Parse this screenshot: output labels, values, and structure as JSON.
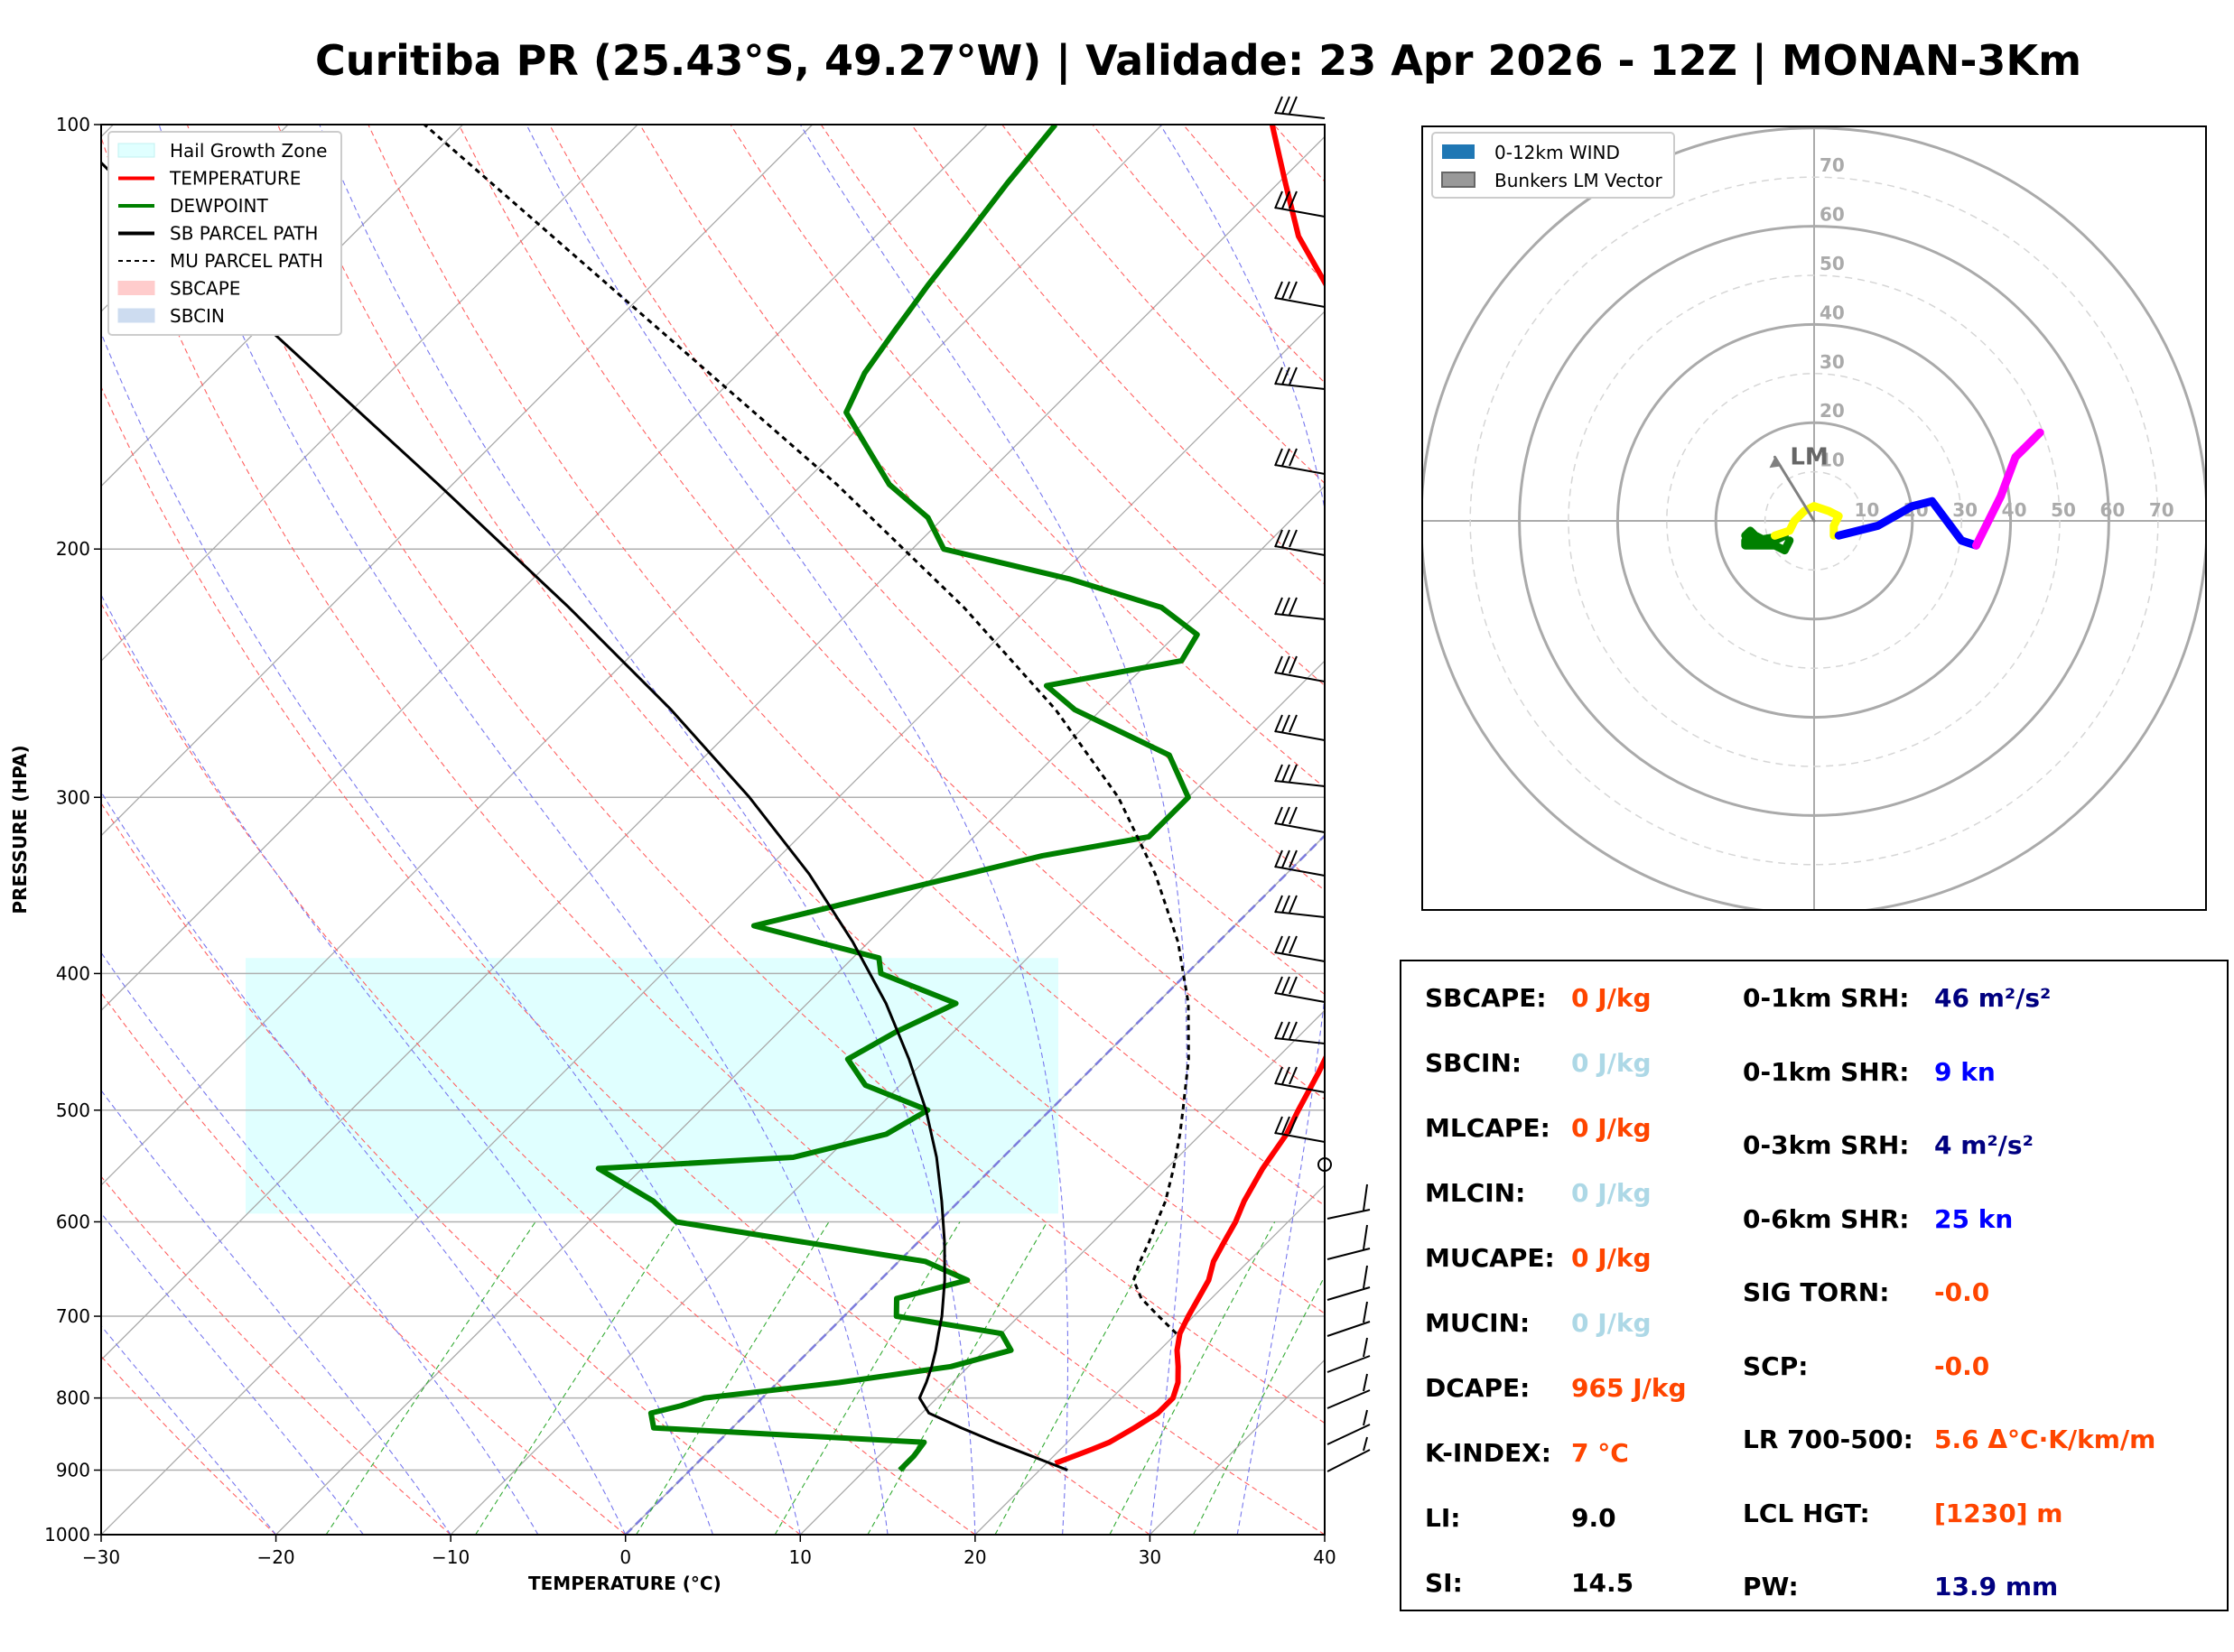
{
  "title": "Curitiba PR (25.43°S, 49.27°W) | Validade: 23 Apr 2026 - 12Z | MONAN-3Km",
  "skewt": {
    "xlabel": "TEMPERATURE (°C)",
    "ylabel": "PRESSURE (HPA)",
    "x_ticks": [
      "−30",
      "−20",
      "−10",
      "0",
      "10",
      "20",
      "30",
      "40"
    ],
    "y_ticks": [
      "100",
      "200",
      "300",
      "400",
      "500",
      "600",
      "700",
      "800",
      "900",
      "1000"
    ],
    "legend": [
      {
        "label": "Hail Growth Zone",
        "color": "#e0ffff",
        "kind": "patch"
      },
      {
        "label": "TEMPERATURE",
        "color": "#ff0000",
        "kind": "line"
      },
      {
        "label": "DEWPOINT",
        "color": "#008000",
        "kind": "line"
      },
      {
        "label": "SB PARCEL PATH",
        "color": "#000000",
        "kind": "line"
      },
      {
        "label": "MU PARCEL PATH",
        "color": "#000000",
        "kind": "dashed"
      },
      {
        "label": "SBCAPE",
        "color": "#ffcccc",
        "kind": "patch"
      },
      {
        "label": "SBCIN",
        "color": "#cddcf0",
        "kind": "patch"
      }
    ]
  },
  "hodograph": {
    "legend": [
      {
        "label": "0-12km WIND",
        "color": "#1f77b4"
      },
      {
        "label": "Bunkers LM Vector",
        "color": "#999999"
      }
    ],
    "ring_labels": [
      "10",
      "20",
      "30",
      "40",
      "50",
      "60",
      "70"
    ],
    "lm_label": "LM"
  },
  "params": {
    "left": [
      {
        "label": "SBCAPE:",
        "value": "0 J/kg",
        "color": "#ff4500"
      },
      {
        "label": "SBCIN:",
        "value": "0 J/kg",
        "color": "#add8e6"
      },
      {
        "label": "MLCAPE:",
        "value": "0 J/kg",
        "color": "#ff4500"
      },
      {
        "label": "MLCIN:",
        "value": "0 J/kg",
        "color": "#add8e6"
      },
      {
        "label": "MUCAPE:",
        "value": "0 J/kg",
        "color": "#ff4500"
      },
      {
        "label": "MUCIN:",
        "value": "0 J/kg",
        "color": "#add8e6"
      },
      {
        "label": "DCAPE:",
        "value": "965 J/kg",
        "color": "#ff4500"
      },
      {
        "label": "K-INDEX:",
        "value": "7 °C",
        "color": "#ff4500"
      },
      {
        "label": "LI:",
        "value": "9.0",
        "color": "#000000"
      },
      {
        "label": "SI:",
        "value": "14.5",
        "color": "#000000"
      }
    ],
    "right": [
      {
        "label": "0-1km SRH:",
        "value": "46 m²/s²",
        "color": "#000080"
      },
      {
        "label": "0-1km SHR:",
        "value": "9 kn",
        "color": "#0000ff"
      },
      {
        "label": "0-3km SRH:",
        "value": "4 m²/s²",
        "color": "#000080"
      },
      {
        "label": "0-6km SHR:",
        "value": "25 kn",
        "color": "#0000ff"
      },
      {
        "label": "SIG TORN:",
        "value": "-0.0",
        "color": "#ff4500"
      },
      {
        "label": "SCP:",
        "value": "-0.0",
        "color": "#ff4500"
      },
      {
        "label": "LR 700-500:",
        "value": "5.6 Δ°C·K/km/m",
        "color": "#ff4500"
      },
      {
        "label": "LCL HGT:",
        "value": "[1230] m",
        "color": "#ff4500"
      },
      {
        "label": "PW:",
        "value": "13.9 mm",
        "color": "#000080"
      }
    ]
  },
  "chart_data": [
    {
      "type": "line",
      "title": "",
      "xlabel": "TEMPERATURE (°C)",
      "ylabel": "PRESSURE (HPA)",
      "xlim": [
        -30,
        40
      ],
      "ylim": [
        1000,
        100
      ],
      "y_scale": "log",
      "skew": "skew-T",
      "grid": true,
      "legend_position": "top-left",
      "series": [
        {
          "name": "TEMPERATURE",
          "color": "#ff0000",
          "p": [
            890,
            870,
            860,
            840,
            820,
            800,
            780,
            760,
            740,
            720,
            700,
            660,
            640,
            620,
            600,
            580,
            550,
            520,
            500,
            470,
            440,
            420,
            400,
            370,
            350,
            330,
            300,
            280,
            260,
            240,
            220,
            200,
            190,
            180,
            170,
            160,
            150,
            140,
            130,
            120,
            110,
            100
          ],
          "t": [
            20.5,
            21.8,
            22.4,
            23.0,
            23.5,
            23.5,
            22.9,
            22.0,
            21.0,
            20.2,
            19.7,
            18.8,
            18.0,
            17.5,
            17.0,
            16.3,
            15.5,
            14.9,
            14.2,
            13.2,
            12.0,
            11.0,
            10.5,
            9.6,
            8.6,
            6.7,
            3.9,
            1.7,
            -0.8,
            -3.5,
            -6.3,
            -8.8,
            -11.0,
            -13.3,
            -16.5,
            -19.8,
            -23.4,
            -27.3,
            -31.4,
            -35.8,
            -39.6,
            -43.7
          ]
        },
        {
          "name": "DEWPOINT",
          "color": "#008000",
          "p": [
            900,
            890,
            880,
            860,
            840,
            820,
            810,
            800,
            780,
            760,
            740,
            720,
            700,
            680,
            660,
            640,
            600,
            580,
            550,
            540,
            520,
            500,
            480,
            460,
            440,
            420,
            400,
            390,
            370,
            330,
            320,
            300,
            280,
            260,
            250,
            240,
            230,
            220,
            210,
            200,
            190,
            180,
            170,
            160,
            150,
            140,
            130,
            120,
            110,
            100
          ],
          "t": [
            12,
            12,
            12,
            11.8,
            -4.5,
            -5.5,
            -4.2,
            -3.3,
            3.5,
            9,
            11.5,
            10,
            3,
            2,
            5,
            1.5,
            -15,
            -17.5,
            -22.5,
            -12,
            -8,
            -7,
            -12,
            -14.5,
            -13.3,
            -11.5,
            -17.5,
            -18.5,
            -27.5,
            -15,
            -10,
            -10,
            -13.5,
            -21.5,
            -24.5,
            -18.2,
            -18.8,
            -22.4,
            -29.3,
            -38.2,
            -40.9,
            -45.0,
            -48.2,
            -51.6,
            -52.8,
            -53.5,
            -54.2,
            -54.8,
            -55.5,
            -56.1
          ]
        },
        {
          "name": "SB PARCEL PATH",
          "color": "#000000",
          "dash": "none",
          "p": [
            900,
            880,
            860,
            840,
            820,
            800,
            780,
            760,
            740,
            720,
            700,
            660,
            620,
            580,
            540,
            500,
            460,
            420,
            380,
            340,
            300,
            260,
            220,
            180,
            140,
            100
          ],
          "t": [
            21.6,
            18.8,
            15.9,
            13.1,
            10.4,
            9.0,
            8.5,
            7.9,
            7.2,
            6.4,
            5.6,
            3.7,
            1.5,
            -1.0,
            -3.8,
            -7.1,
            -11.0,
            -15.5,
            -20.9,
            -27.3,
            -35.1,
            -44.6,
            -56.3,
            -70.8,
            -89.2,
            -112.9
          ]
        },
        {
          "name": "MU PARCEL PATH",
          "color": "#000000",
          "dash": "6,5",
          "p": [
            720,
            700,
            680,
            660,
            640,
            620,
            600,
            580,
            550,
            520,
            500,
            460,
            420,
            380,
            340,
            300,
            260,
            220,
            180,
            140,
            100
          ],
          "t": [
            20.0,
            18.0,
            16.0,
            14.5,
            13.8,
            13.2,
            12.5,
            11.8,
            10.4,
            8.8,
            7.6,
            5.0,
            1.8,
            -2.3,
            -7.5,
            -14.0,
            -22.6,
            -33.7,
            -48.0,
            -66.9,
            -92.2
          ]
        }
      ]
    },
    {
      "type": "line",
      "title": "",
      "xlabel": "",
      "ylabel": "",
      "xlim": [
        -80,
        80
      ],
      "ylim": [
        -80,
        80
      ],
      "grid": true,
      "legend_position": "top-left",
      "series": [
        {
          "color": "#008000",
          "u": [
            -5,
            -6,
            -8,
            -14,
            -14,
            -12,
            -8,
            -6,
            -12,
            -14,
            -13,
            -12,
            -10
          ],
          "v": [
            -4,
            -6,
            -5,
            -5,
            -4,
            -5,
            -4,
            -3,
            -4,
            -3,
            -2,
            -3,
            -4
          ]
        },
        {
          "color": "#ffff00",
          "u": [
            -8,
            -5,
            -4,
            -2,
            0,
            3,
            5,
            4,
            4
          ],
          "v": [
            -3,
            -2,
            0,
            2,
            3,
            2,
            1,
            -1,
            -3
          ]
        },
        {
          "color": "#0000ff",
          "u": [
            5,
            13,
            20,
            24,
            30,
            33
          ],
          "v": [
            -3,
            -1,
            3,
            4,
            -4,
            -5
          ]
        },
        {
          "color": "#ff00ff",
          "u": [
            33,
            38,
            41,
            44,
            46
          ],
          "v": [
            -5,
            5,
            13,
            16,
            18
          ]
        },
        {
          "color": "#808080",
          "u": [
            0,
            -8
          ],
          "v": [
            0,
            13
          ]
        }
      ]
    }
  ]
}
